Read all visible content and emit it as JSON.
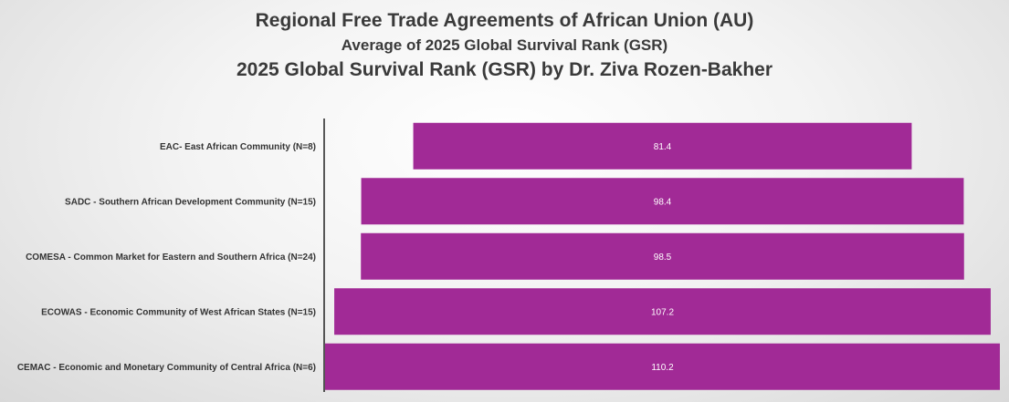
{
  "chart_data": {
    "type": "bar",
    "orientation": "horizontal",
    "title": "Regional Free Trade Agreements of African Union (AU)",
    "subtitle": "Average of 2025 Global Survival Rank (GSR)",
    "subtitle2": "2025 Global Survival Rank (GSR) by Dr. Ziva Rozen-Bakher",
    "categories": [
      "EAC- East African Community (N=8)",
      "SADC - Southern African Development Community (N=15)",
      "COMESA - Common Market for Eastern and Southern Africa (N=24)",
      "ECOWAS - Economic Community of West African States (N=15)",
      "CEMAC - Economic and Monetary Community of Central Africa (N=6)"
    ],
    "values": [
      81.4,
      98.4,
      98.5,
      107.2,
      110.2
    ],
    "value_labels": [
      "81.4",
      "98.4",
      "98.5",
      "107.2",
      "110.2"
    ],
    "bar_color": "#a12a96",
    "style": "centered funnel",
    "xlim": [
      0,
      110.2
    ],
    "grid": false,
    "legend": "none"
  }
}
